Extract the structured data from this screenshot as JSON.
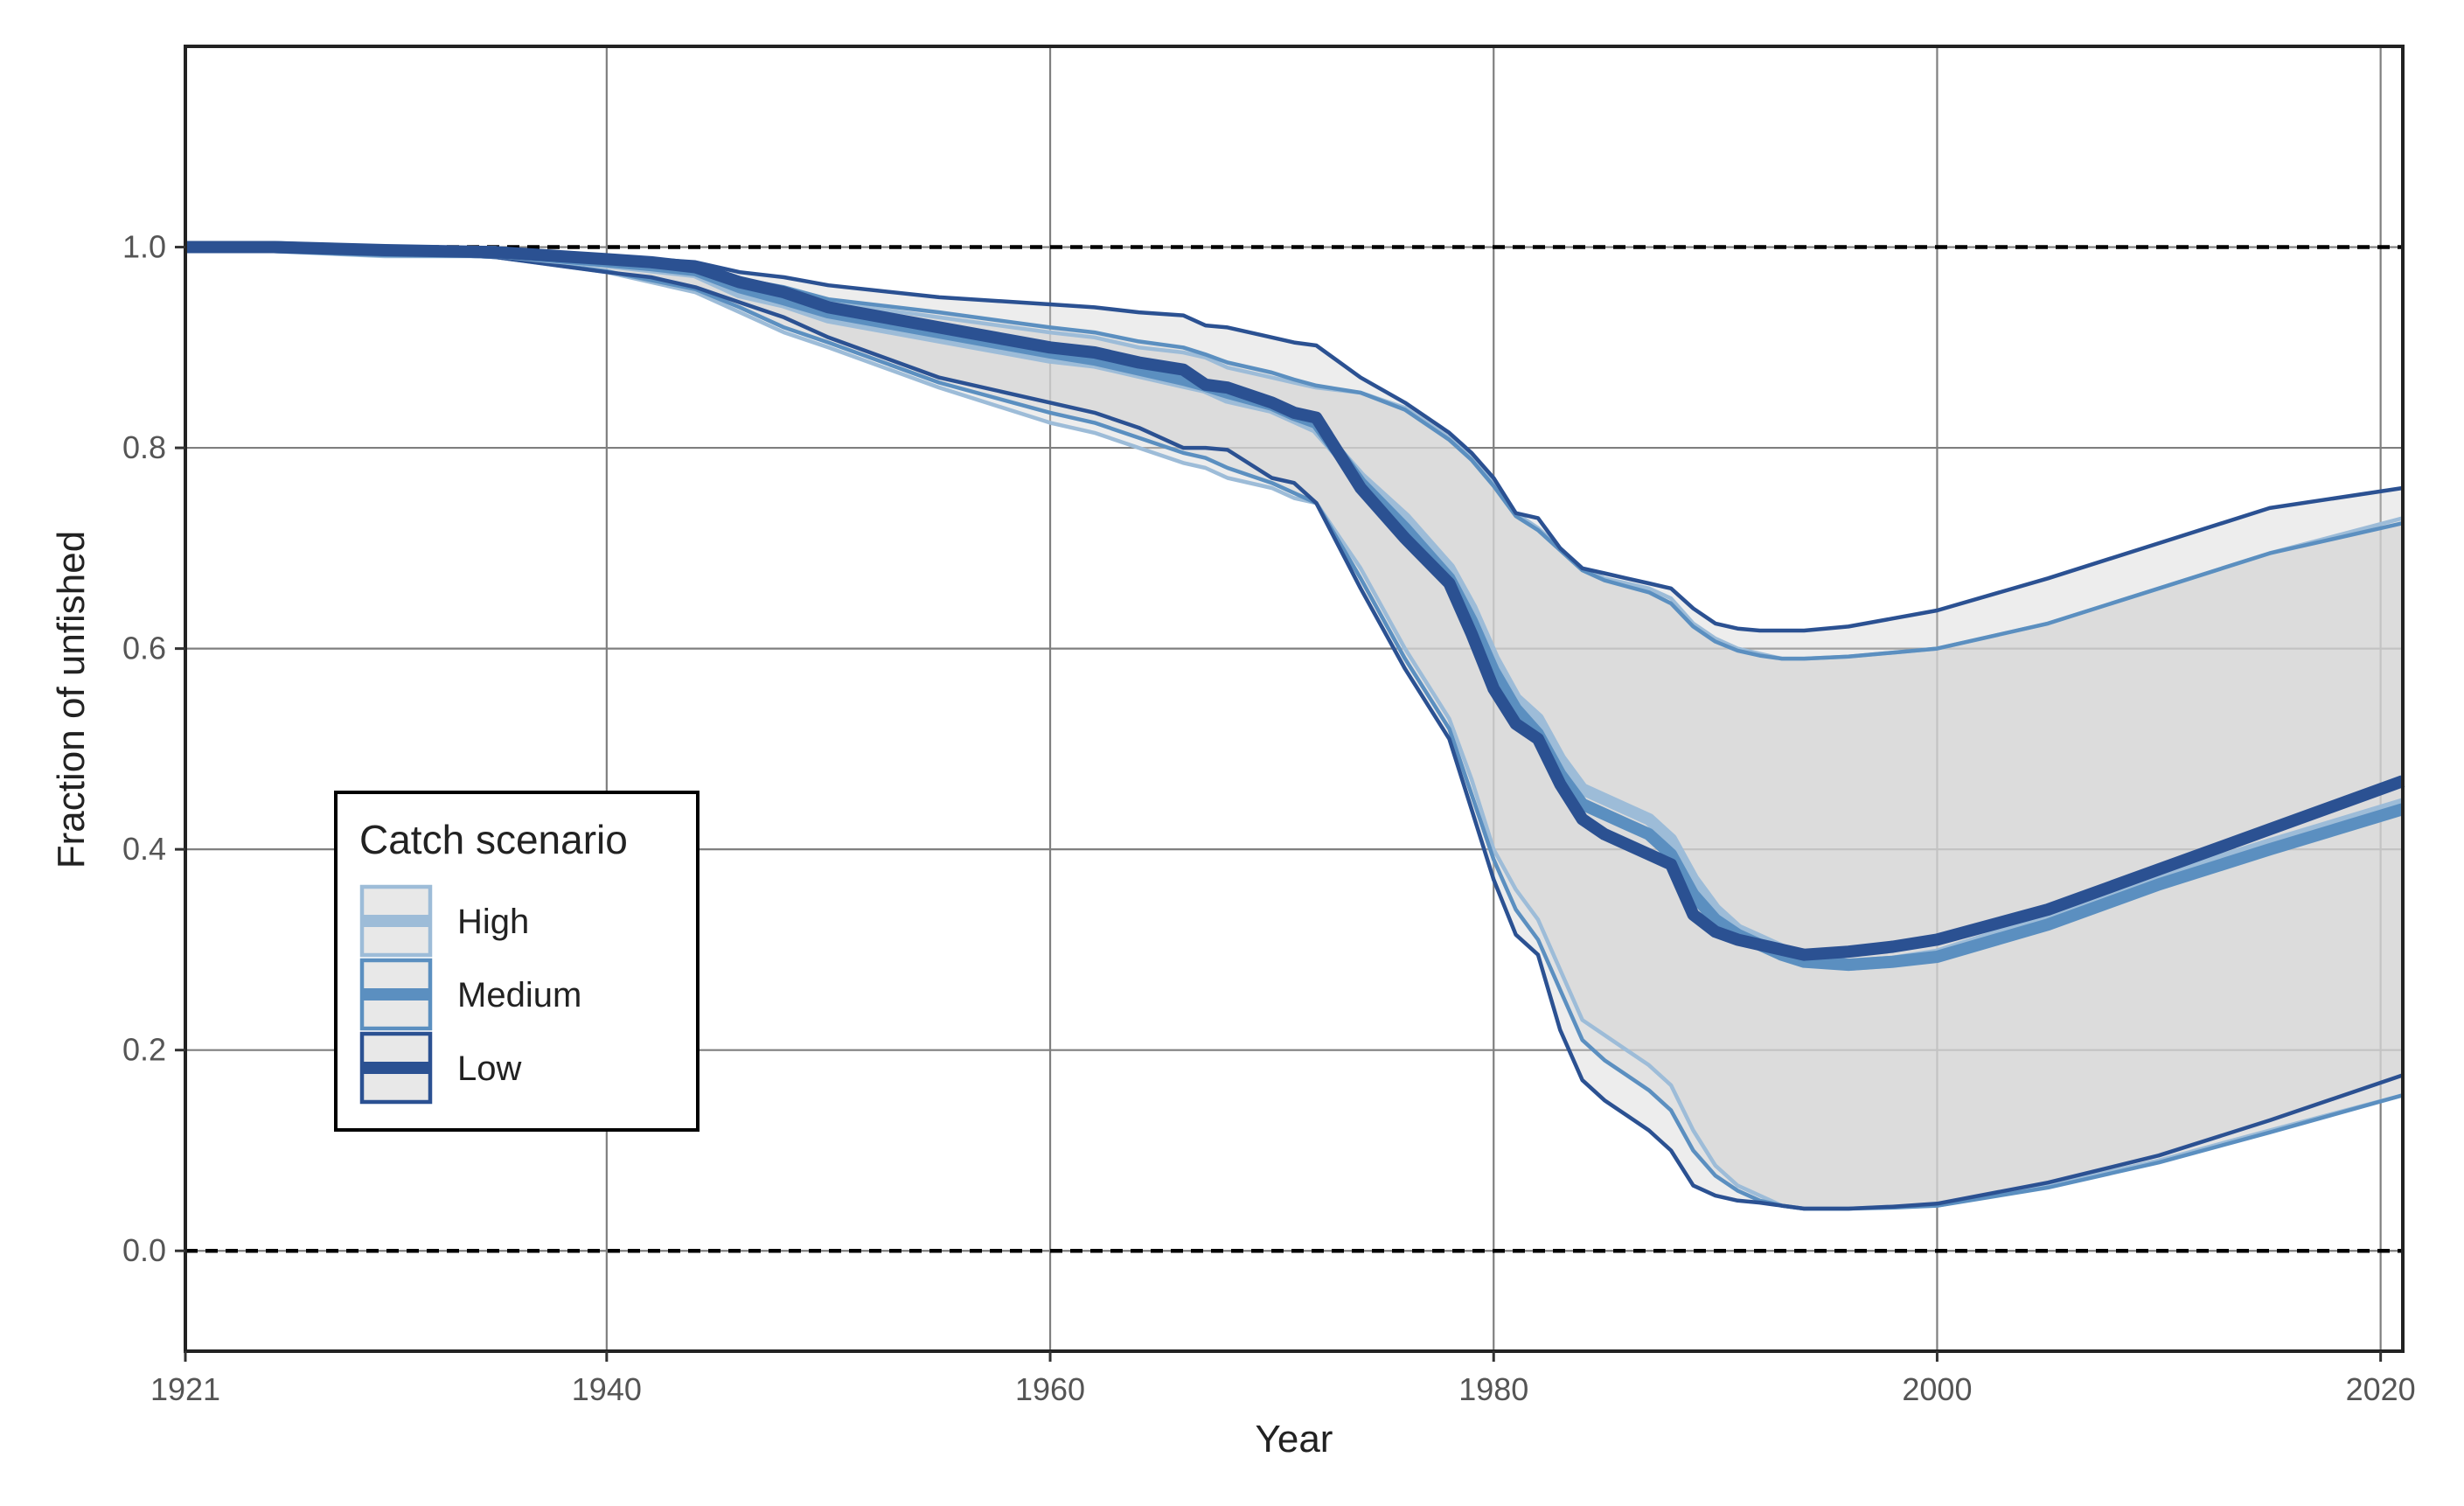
{
  "chart_data": {
    "type": "line",
    "xlabel": "Year",
    "ylabel": "Fraction of unfished",
    "xlim": [
      1921,
      2021
    ],
    "ylim": [
      -0.1,
      1.2
    ],
    "x_ticks": [
      1921,
      1940,
      1960,
      1980,
      2000,
      2020
    ],
    "x_tick_labels": [
      "1921",
      "1940",
      "1960",
      "1980",
      "2000",
      "2020"
    ],
    "y_ticks": [
      0.0,
      0.2,
      0.4,
      0.6,
      0.8,
      1.0
    ],
    "y_tick_labels": [
      "0.0",
      "0.2",
      "0.4",
      "0.6",
      "0.8",
      "1.0"
    ],
    "reference_lines": [
      0.0,
      1.0
    ],
    "grid": true,
    "legend": {
      "title": "Catch scenario",
      "position": "left-middle",
      "entries": [
        "High",
        "Medium",
        "Low"
      ]
    },
    "x": [
      1921,
      1925,
      1930,
      1935,
      1940,
      1942,
      1944,
      1946,
      1948,
      1950,
      1955,
      1960,
      1962,
      1964,
      1966,
      1967,
      1968,
      1970,
      1971,
      1972,
      1974,
      1976,
      1978,
      1979,
      1980,
      1981,
      1982,
      1983,
      1984,
      1985,
      1986,
      1987,
      1988,
      1989,
      1990,
      1991,
      1992,
      1993,
      1994,
      1996,
      1998,
      2000,
      2005,
      2010,
      2015,
      2021
    ],
    "series": [
      {
        "name": "High",
        "color": "#9dbcd8",
        "median": [
          1.0,
          1.0,
          0.995,
          0.995,
          0.985,
          0.98,
          0.975,
          0.955,
          0.945,
          0.93,
          0.91,
          0.89,
          0.885,
          0.875,
          0.865,
          0.86,
          0.85,
          0.84,
          0.83,
          0.82,
          0.77,
          0.73,
          0.68,
          0.64,
          0.59,
          0.55,
          0.53,
          0.49,
          0.46,
          0.45,
          0.44,
          0.43,
          0.41,
          0.37,
          0.34,
          0.32,
          0.31,
          0.3,
          0.29,
          0.285,
          0.288,
          0.295,
          0.33,
          0.37,
          0.405,
          0.445
        ],
        "upper": [
          1.0,
          1.0,
          0.995,
          0.99,
          0.985,
          0.98,
          0.975,
          0.965,
          0.955,
          0.945,
          0.93,
          0.915,
          0.91,
          0.9,
          0.895,
          0.89,
          0.88,
          0.87,
          0.865,
          0.86,
          0.855,
          0.84,
          0.81,
          0.79,
          0.765,
          0.735,
          0.72,
          0.7,
          0.68,
          0.67,
          0.665,
          0.66,
          0.65,
          0.625,
          0.61,
          0.6,
          0.595,
          0.59,
          0.59,
          0.592,
          0.596,
          0.6,
          0.625,
          0.66,
          0.695,
          0.73
        ],
        "lower": [
          1.0,
          1.0,
          0.995,
          0.99,
          0.975,
          0.965,
          0.955,
          0.935,
          0.915,
          0.9,
          0.86,
          0.825,
          0.815,
          0.8,
          0.785,
          0.78,
          0.77,
          0.76,
          0.75,
          0.745,
          0.68,
          0.6,
          0.53,
          0.47,
          0.4,
          0.36,
          0.33,
          0.28,
          0.23,
          0.215,
          0.2,
          0.185,
          0.165,
          0.12,
          0.085,
          0.065,
          0.055,
          0.045,
          0.042,
          0.042,
          0.044,
          0.045,
          0.065,
          0.09,
          0.12,
          0.155
        ]
      },
      {
        "name": "Medium",
        "color": "#5b8fc0",
        "median": [
          1.0,
          1.0,
          0.996,
          0.995,
          0.986,
          0.982,
          0.977,
          0.96,
          0.948,
          0.935,
          0.915,
          0.895,
          0.888,
          0.878,
          0.868,
          0.862,
          0.855,
          0.843,
          0.833,
          0.825,
          0.765,
          0.72,
          0.67,
          0.628,
          0.578,
          0.54,
          0.515,
          0.475,
          0.445,
          0.435,
          0.425,
          0.415,
          0.395,
          0.355,
          0.33,
          0.315,
          0.305,
          0.295,
          0.288,
          0.285,
          0.288,
          0.293,
          0.325,
          0.365,
          0.4,
          0.44
        ],
        "upper": [
          1.0,
          1.0,
          0.996,
          0.993,
          0.986,
          0.982,
          0.978,
          0.968,
          0.96,
          0.948,
          0.935,
          0.92,
          0.915,
          0.906,
          0.9,
          0.893,
          0.885,
          0.875,
          0.868,
          0.862,
          0.855,
          0.838,
          0.808,
          0.788,
          0.762,
          0.732,
          0.718,
          0.698,
          0.678,
          0.668,
          0.662,
          0.656,
          0.645,
          0.622,
          0.607,
          0.598,
          0.593,
          0.59,
          0.59,
          0.592,
          0.596,
          0.6,
          0.625,
          0.66,
          0.695,
          0.725
        ],
        "lower": [
          1.0,
          1.0,
          0.995,
          0.99,
          0.976,
          0.967,
          0.958,
          0.94,
          0.92,
          0.905,
          0.865,
          0.835,
          0.825,
          0.81,
          0.795,
          0.79,
          0.78,
          0.765,
          0.755,
          0.745,
          0.67,
          0.59,
          0.52,
          0.455,
          0.39,
          0.34,
          0.31,
          0.26,
          0.21,
          0.19,
          0.175,
          0.16,
          0.14,
          0.1,
          0.075,
          0.06,
          0.05,
          0.045,
          0.042,
          0.042,
          0.043,
          0.045,
          0.063,
          0.088,
          0.118,
          0.155
        ]
      },
      {
        "name": "Low",
        "color": "#2b5192",
        "median": [
          1.0,
          1.0,
          0.997,
          0.995,
          0.988,
          0.985,
          0.98,
          0.965,
          0.955,
          0.94,
          0.92,
          0.9,
          0.895,
          0.885,
          0.878,
          0.863,
          0.86,
          0.845,
          0.835,
          0.83,
          0.76,
          0.71,
          0.665,
          0.615,
          0.56,
          0.525,
          0.51,
          0.465,
          0.43,
          0.415,
          0.405,
          0.395,
          0.385,
          0.335,
          0.318,
          0.31,
          0.305,
          0.3,
          0.295,
          0.298,
          0.303,
          0.31,
          0.34,
          0.38,
          0.42,
          0.468
        ],
        "upper": [
          1.0,
          1.0,
          0.997,
          0.995,
          0.99,
          0.988,
          0.985,
          0.975,
          0.97,
          0.962,
          0.95,
          0.943,
          0.94,
          0.935,
          0.932,
          0.922,
          0.92,
          0.91,
          0.905,
          0.902,
          0.87,
          0.845,
          0.815,
          0.795,
          0.77,
          0.735,
          0.73,
          0.7,
          0.68,
          0.675,
          0.67,
          0.665,
          0.66,
          0.64,
          0.625,
          0.62,
          0.618,
          0.618,
          0.618,
          0.622,
          0.63,
          0.638,
          0.67,
          0.705,
          0.74,
          0.76
        ],
        "lower": [
          1.0,
          1.0,
          0.995,
          0.99,
          0.975,
          0.97,
          0.96,
          0.945,
          0.93,
          0.91,
          0.87,
          0.845,
          0.835,
          0.82,
          0.8,
          0.8,
          0.798,
          0.77,
          0.765,
          0.745,
          0.66,
          0.58,
          0.51,
          0.44,
          0.37,
          0.315,
          0.295,
          0.22,
          0.17,
          0.15,
          0.135,
          0.12,
          0.1,
          0.065,
          0.055,
          0.05,
          0.048,
          0.045,
          0.042,
          0.042,
          0.044,
          0.047,
          0.068,
          0.095,
          0.13,
          0.175
        ]
      }
    ]
  }
}
